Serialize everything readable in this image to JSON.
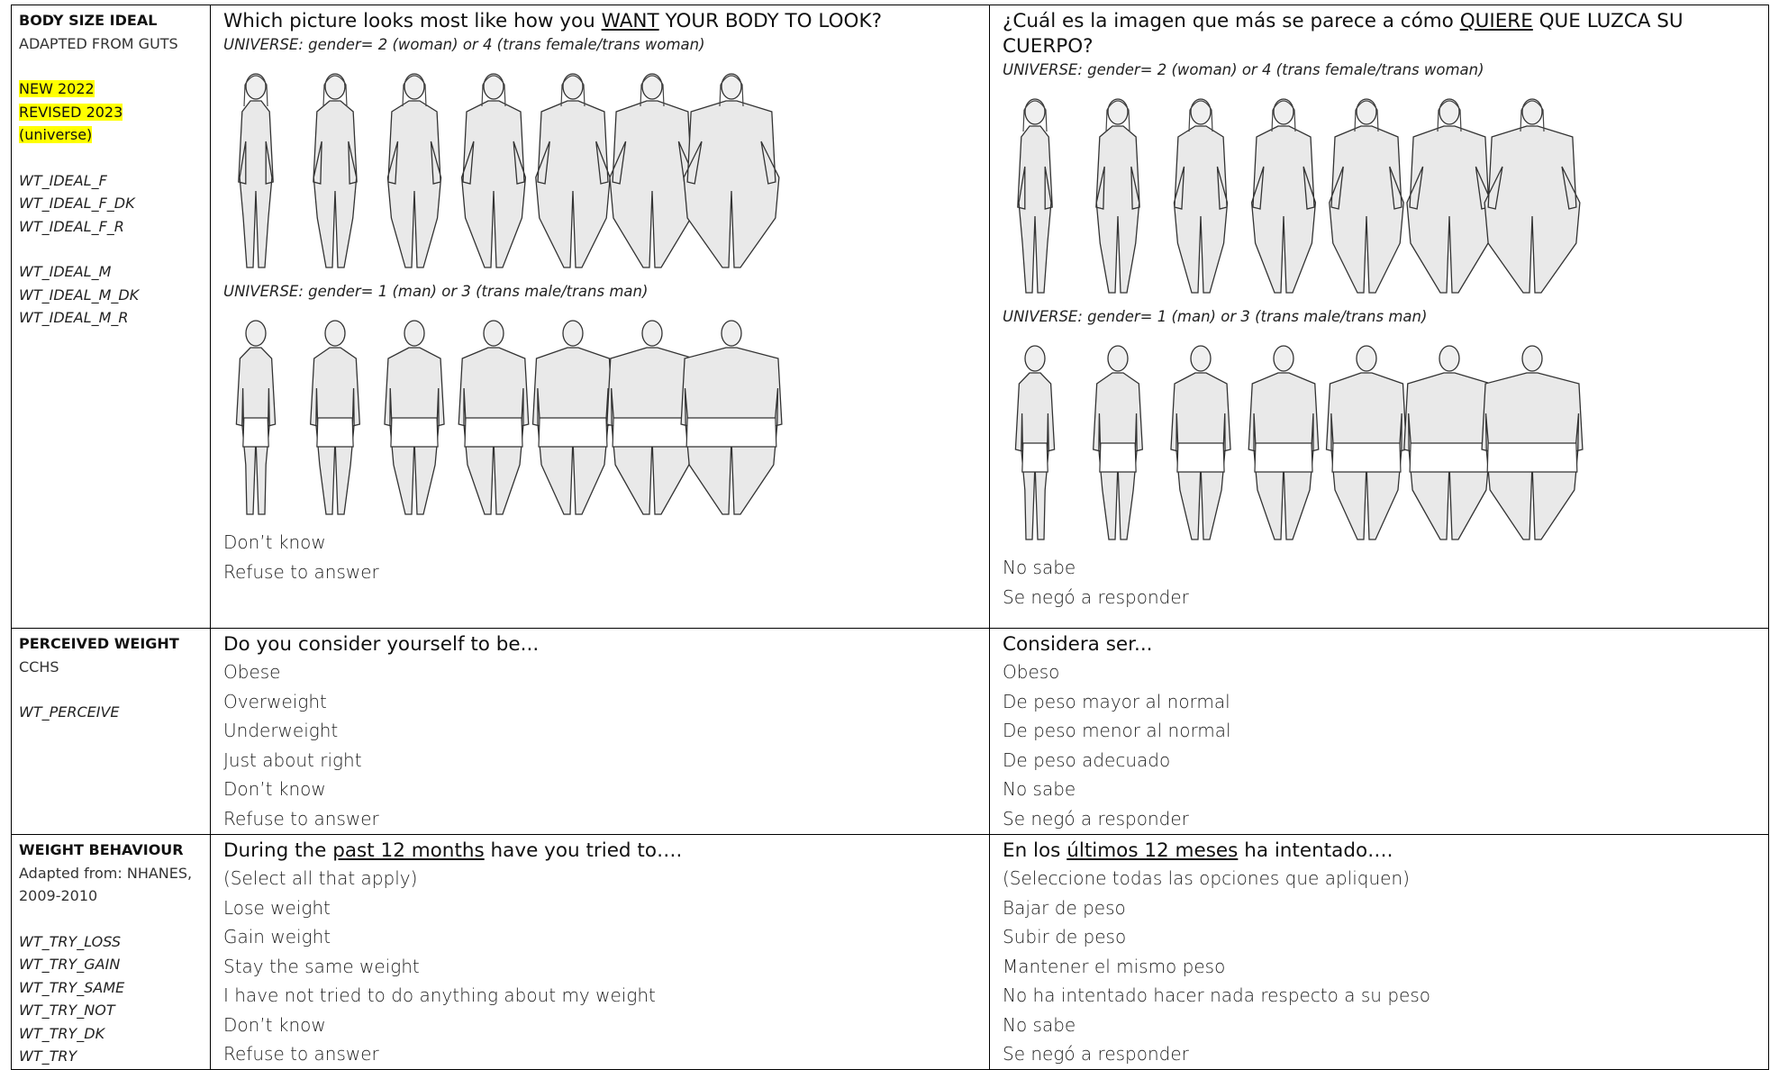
{
  "rows": [
    {
      "label": {
        "title": "BODY SIZE IDEAL",
        "source": "ADAPTED FROM GUTS",
        "highlights": [
          "NEW 2022",
          "REVISED 2023",
          "(universe)"
        ],
        "variable_groups": [
          [
            "WT_IDEAL_F",
            "WT_IDEAL_F_DK",
            "WT_IDEAL_F_R"
          ],
          [
            "WT_IDEAL_M",
            "WT_IDEAL_M_DK",
            "WT_IDEAL_M_R"
          ]
        ]
      },
      "english": {
        "question": [
          {
            "text": "Which picture looks most like how you ",
            "underline": false
          },
          {
            "text": "WANT",
            "underline": true
          },
          {
            "text": " YOUR BODY TO LOOK?",
            "underline": false
          }
        ],
        "universe_female": "UNIVERSE: gender= 2 (woman) or 4 (trans female/trans woman)",
        "universe_male": "UNIVERSE: gender= 1 (man) or 3 (trans male/trans man)",
        "options": [
          "Don’t know",
          "Refuse to answer"
        ]
      },
      "spanish": {
        "question": [
          {
            "text": "¿Cuál es la imagen que más se parece a cómo ",
            "underline": false
          },
          {
            "text": "QUIERE",
            "underline": true
          },
          {
            "text": " QUE LUZCA SU CUERPO?",
            "underline": false
          }
        ],
        "universe_female": "UNIVERSE: gender= 2 (woman) or 4 (trans female/trans woman)",
        "universe_male": "UNIVERSE: gender= 1 (man) or 3 (trans male/trans man)",
        "options": [
          "No sabe",
          "Se negó a responder"
        ]
      }
    },
    {
      "label": {
        "title": "PERCEIVED WEIGHT",
        "source": "CCHS",
        "variable_groups": [
          [
            "WT_PERCEIVE"
          ]
        ]
      },
      "english": {
        "question": [
          {
            "text": "Do you consider yourself to be...",
            "underline": false
          }
        ],
        "options": [
          "Obese",
          "Overweight",
          "Underweight",
          "Just about right",
          "Don’t know",
          "Refuse to answer"
        ]
      },
      "spanish": {
        "question": [
          {
            "text": "Considera ser...",
            "underline": false
          }
        ],
        "options": [
          "Obeso",
          "De peso mayor al normal",
          "De peso menor al normal",
          "De peso adecuado",
          "No sabe",
          "Se negó a responder"
        ]
      }
    },
    {
      "label": {
        "title": "WEIGHT BEHAVIOUR",
        "source": "Adapted from: NHANES, 2009-2010",
        "variable_groups": [
          [
            "WT_TRY_LOSS",
            "WT_TRY_GAIN",
            "WT_TRY_SAME",
            "WT_TRY_NOT",
            "WT_TRY_DK",
            "WT_TRY"
          ]
        ]
      },
      "english": {
        "question": [
          {
            "text": "During the ",
            "underline": false
          },
          {
            "text": "past 12 months",
            "underline": true
          },
          {
            "text": " have you tried to….",
            "underline": false
          }
        ],
        "options": [
          "(Select all that apply)",
          "Lose weight",
          "Gain weight",
          "Stay the same weight",
          "I have not tried to do anything about my weight",
          "Don’t know",
          "Refuse to answer"
        ]
      },
      "spanish": {
        "question": [
          {
            "text": "En los ",
            "underline": false
          },
          {
            "text": "últimos 12 meses",
            "underline": true
          },
          {
            "text": " ha intentado….",
            "underline": false
          }
        ],
        "options": [
          "(Seleccione todas las opciones que apliquen)",
          "Bajar de peso",
          "Subir de peso",
          "Mantener el mismo peso",
          "No ha intentado hacer nada respecto a su peso",
          "No sabe",
          "Se negó a responder"
        ]
      }
    }
  ]
}
